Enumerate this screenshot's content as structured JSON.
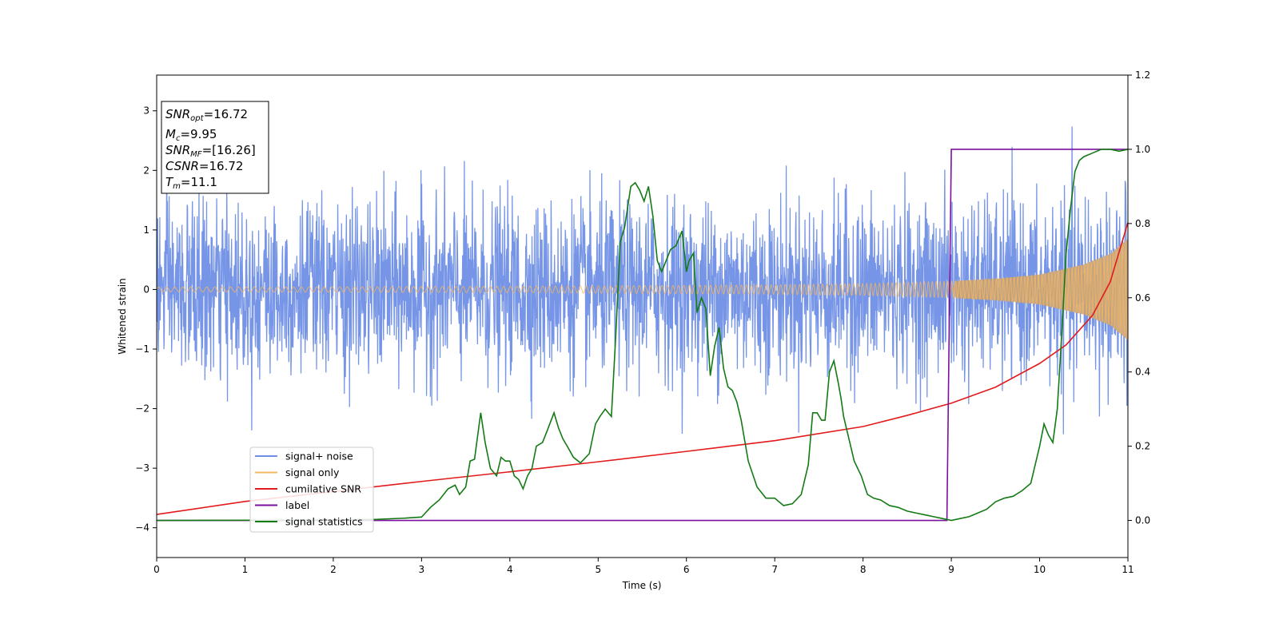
{
  "chart_data": {
    "type": "line",
    "xlabel": "Time (s)",
    "ylabel": "Whitened strain",
    "xlim": [
      0,
      11
    ],
    "ylim": [
      -4.5,
      3.6
    ],
    "y2lim": [
      -0.1,
      1.2
    ],
    "x_ticks": [
      0,
      1,
      2,
      3,
      4,
      5,
      6,
      7,
      8,
      9,
      10,
      11
    ],
    "y_ticks": [
      -4,
      -3,
      -2,
      -1,
      0,
      1,
      2,
      3
    ],
    "y2_ticks": [
      "0.0",
      "0.2",
      "0.4",
      "0.6",
      "0.8",
      "1.0",
      "1.2"
    ],
    "grid": false,
    "legend_position": "lower-left",
    "info_box": {
      "snr_opt": "16.72",
      "mc": "9.95",
      "snr_mf": "[16.26]",
      "csnr": "16.72",
      "tm": "11.1"
    },
    "series": [
      {
        "name": "signal+ noise",
        "axis": "left",
        "color": "#6f8fe6",
        "description_free": true,
        "noise_std": 0.72,
        "samples": 2800
      },
      {
        "name": "signal only",
        "axis": "left",
        "color": "#f5b75c",
        "envelope": [
          [
            0,
            0.04
          ],
          [
            2,
            0.045
          ],
          [
            4,
            0.055
          ],
          [
            6,
            0.07
          ],
          [
            7,
            0.08
          ],
          [
            8,
            0.1
          ],
          [
            9,
            0.14
          ],
          [
            9.5,
            0.18
          ],
          [
            10,
            0.25
          ],
          [
            10.5,
            0.42
          ],
          [
            10.8,
            0.6
          ],
          [
            11,
            0.85
          ]
        ]
      },
      {
        "name": "cumilative SNR",
        "axis": "right",
        "color": "#e31a1c",
        "x": [
          0,
          1,
          2,
          3,
          4,
          5,
          6,
          7,
          8,
          8.5,
          9,
          9.5,
          10,
          10.3,
          10.6,
          10.8,
          11
        ],
        "y": [
          0.016,
          0.051,
          0.078,
          0.105,
          0.131,
          0.158,
          0.186,
          0.215,
          0.253,
          0.283,
          0.316,
          0.359,
          0.423,
          0.473,
          0.553,
          0.643,
          0.803
        ]
      },
      {
        "name": "label",
        "axis": "right",
        "color": "#7b0f9e",
        "x": [
          0,
          8.95,
          9.0,
          11
        ],
        "y": [
          0,
          0,
          1,
          1
        ]
      },
      {
        "name": "signal statistics",
        "axis": "right",
        "color": "#147a14",
        "x": [
          0,
          2,
          2.5,
          2.8,
          3.0,
          3.1,
          3.2,
          3.3,
          3.38,
          3.43,
          3.5,
          3.55,
          3.6,
          3.67,
          3.72,
          3.78,
          3.85,
          3.9,
          3.95,
          4.0,
          4.05,
          4.1,
          4.15,
          4.2,
          4.25,
          4.3,
          4.37,
          4.42,
          4.5,
          4.55,
          4.6,
          4.65,
          4.72,
          4.8,
          4.9,
          4.97,
          5.02,
          5.08,
          5.15,
          5.2,
          5.25,
          5.3,
          5.37,
          5.42,
          5.47,
          5.52,
          5.57,
          5.62,
          5.67,
          5.72,
          5.77,
          5.82,
          5.88,
          5.95,
          6.0,
          6.03,
          6.08,
          6.12,
          6.17,
          6.22,
          6.27,
          6.32,
          6.37,
          6.42,
          6.47,
          6.52,
          6.57,
          6.62,
          6.7,
          6.8,
          6.9,
          7.0,
          7.1,
          7.2,
          7.3,
          7.38,
          7.43,
          7.48,
          7.53,
          7.57,
          7.62,
          7.67,
          7.72,
          7.75,
          7.78,
          7.83,
          7.9,
          7.98,
          8.05,
          8.12,
          8.2,
          8.3,
          8.4,
          8.5,
          8.6,
          8.7,
          8.8,
          8.9,
          9.0,
          9.1,
          9.2,
          9.3,
          9.4,
          9.5,
          9.6,
          9.7,
          9.8,
          9.9,
          10.0,
          10.05,
          10.1,
          10.15,
          10.2,
          10.25,
          10.3,
          10.35,
          10.4,
          10.45,
          10.5,
          10.6,
          10.7,
          10.8,
          10.9,
          11.0
        ],
        "y": [
          0,
          0.001,
          0.003,
          0.006,
          0.009,
          0.035,
          0.055,
          0.085,
          0.095,
          0.07,
          0.09,
          0.16,
          0.165,
          0.29,
          0.21,
          0.14,
          0.12,
          0.17,
          0.16,
          0.16,
          0.12,
          0.11,
          0.085,
          0.12,
          0.14,
          0.2,
          0.21,
          0.24,
          0.29,
          0.25,
          0.22,
          0.2,
          0.17,
          0.155,
          0.18,
          0.26,
          0.28,
          0.3,
          0.28,
          0.5,
          0.75,
          0.79,
          0.9,
          0.91,
          0.89,
          0.86,
          0.9,
          0.82,
          0.7,
          0.67,
          0.7,
          0.73,
          0.74,
          0.78,
          0.67,
          0.7,
          0.72,
          0.56,
          0.6,
          0.57,
          0.39,
          0.47,
          0.52,
          0.41,
          0.36,
          0.35,
          0.32,
          0.27,
          0.16,
          0.09,
          0.06,
          0.06,
          0.04,
          0.045,
          0.07,
          0.15,
          0.29,
          0.29,
          0.27,
          0.27,
          0.4,
          0.43,
          0.37,
          0.33,
          0.28,
          0.23,
          0.16,
          0.12,
          0.07,
          0.06,
          0.055,
          0.04,
          0.035,
          0.025,
          0.02,
          0.015,
          0.01,
          0.005,
          0.0,
          0.005,
          0.01,
          0.02,
          0.03,
          0.05,
          0.06,
          0.065,
          0.08,
          0.1,
          0.2,
          0.26,
          0.23,
          0.21,
          0.3,
          0.5,
          0.72,
          0.84,
          0.94,
          0.97,
          0.98,
          0.99,
          1.0,
          1.0,
          0.995,
          1.0
        ]
      }
    ]
  }
}
